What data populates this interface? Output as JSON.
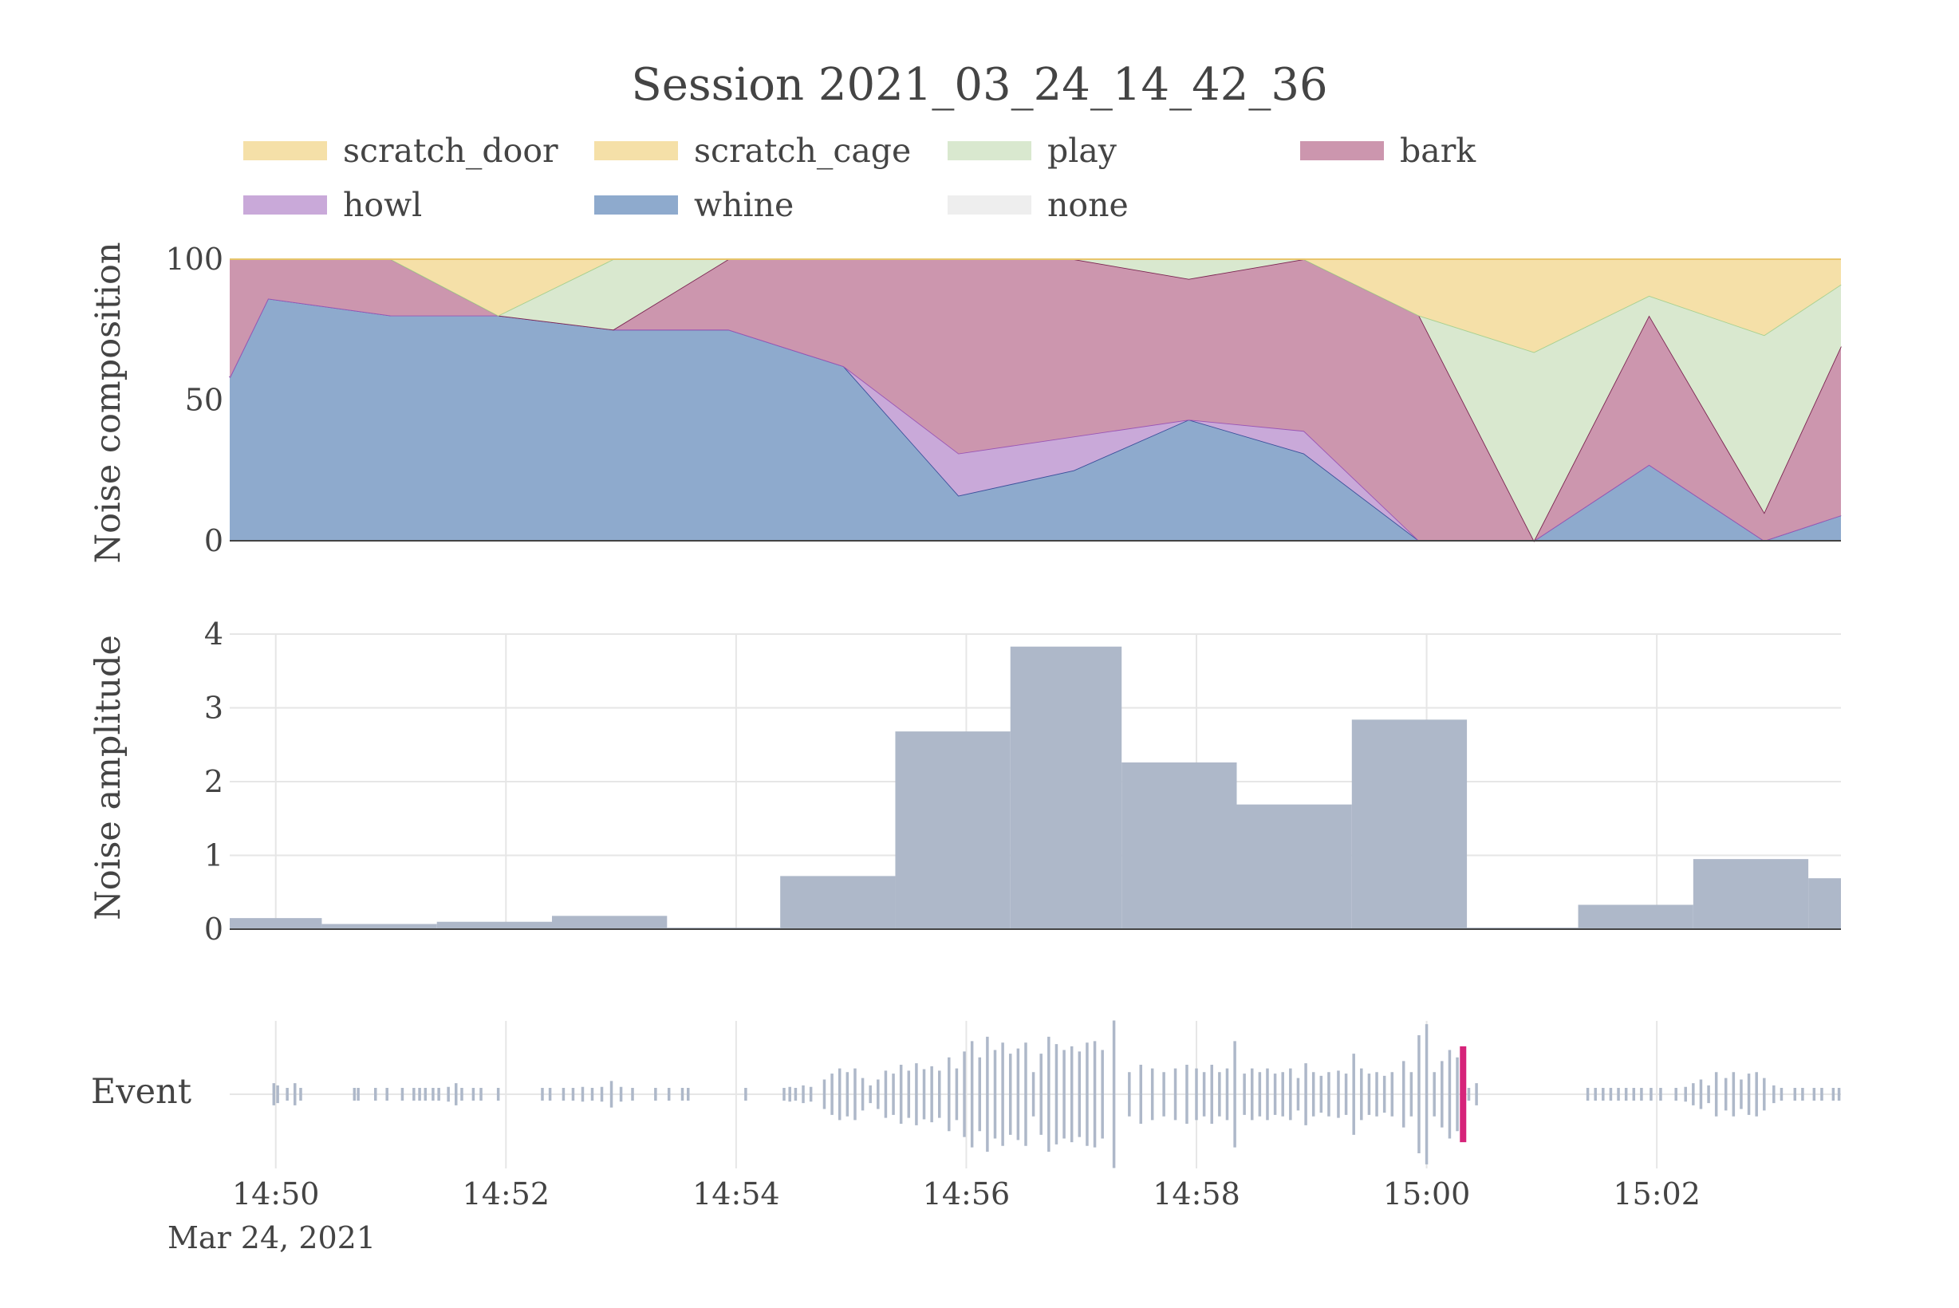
{
  "title": "Session 2021_03_24_14_42_36",
  "legend": [
    {
      "name": "scratch_door",
      "color": "#f5e0a8"
    },
    {
      "name": "scratch_cage",
      "color": "#f5e0a8"
    },
    {
      "name": "play",
      "color": "#d9e8cf"
    },
    {
      "name": "bark",
      "color": "#cc96ae"
    },
    {
      "name": "howl",
      "color": "#c9a9d9"
    },
    {
      "name": "whine",
      "color": "#8eaacd"
    },
    {
      "name": "none",
      "color": "#eeeeee"
    }
  ],
  "colors": {
    "whine_line": "#3a4f9a",
    "howl_line": "#9a55b5",
    "bark_line": "#7a2450",
    "play_line": "#a8d08f",
    "scratch_line": "#e9c46a",
    "amplitude_fill": "#aeb8c9",
    "event_bar": "#aeb8c9",
    "event_highlight": "#d6247a"
  },
  "x_axis": {
    "tick_labels": [
      "14:50",
      "14:52",
      "14:54",
      "14:56",
      "14:58",
      "15:00",
      "15:02"
    ],
    "date_label": "Mar 24, 2021",
    "range": [
      "14:49:36",
      "15:03:36"
    ]
  },
  "chart_data": [
    {
      "type": "area",
      "ylabel": "Noise composition",
      "ylim": [
        0,
        100
      ],
      "y_ticks": [
        "0",
        "50",
        "100"
      ],
      "x": [
        "14:49:36",
        "14:49:56",
        "14:51:00",
        "14:51:56",
        "14:52:56",
        "14:53:56",
        "14:54:56",
        "14:55:56",
        "14:56:56",
        "14:57:56",
        "14:58:56",
        "14:59:56",
        "15:00:56",
        "15:01:56",
        "15:02:56",
        "15:03:36"
      ],
      "stacked_order": [
        "whine",
        "howl",
        "bark",
        "play",
        "scratch_cage",
        "scratch_door"
      ],
      "series": [
        {
          "name": "whine",
          "values": [
            58,
            86,
            80,
            80,
            75,
            75,
            62,
            16,
            25,
            43,
            31,
            0,
            0,
            27,
            0,
            9
          ]
        },
        {
          "name": "howl",
          "values": [
            0,
            0,
            0,
            0,
            0,
            0,
            0,
            15,
            12,
            0,
            8,
            0,
            0,
            0,
            0,
            0
          ]
        },
        {
          "name": "bark",
          "values": [
            42,
            14,
            20,
            0,
            0,
            25,
            38,
            69,
            63,
            50,
            61,
            80,
            0,
            53,
            10,
            60
          ]
        },
        {
          "name": "play",
          "values": [
            0,
            0,
            0,
            0,
            25,
            0,
            0,
            0,
            0,
            7,
            0,
            0,
            67,
            7,
            63,
            22
          ]
        },
        {
          "name": "scratch_cage",
          "values": [
            0,
            0,
            0,
            20,
            0,
            0,
            0,
            0,
            0,
            0,
            0,
            20,
            33,
            13,
            27,
            9
          ]
        },
        {
          "name": "scratch_door",
          "values": [
            0,
            0,
            0,
            0,
            0,
            0,
            0,
            0,
            0,
            0,
            0,
            0,
            0,
            0,
            0,
            0
          ]
        }
      ]
    },
    {
      "type": "bar",
      "ylabel": "Noise amplitude",
      "ylim": [
        0,
        4
      ],
      "y_ticks": [
        "0",
        "1",
        "2",
        "3",
        "4"
      ],
      "bins": [
        {
          "start": "14:49:36",
          "end": "14:50:24",
          "value": 0.15
        },
        {
          "start": "14:50:24",
          "end": "14:51:24",
          "value": 0.07
        },
        {
          "start": "14:51:24",
          "end": "14:52:24",
          "value": 0.1
        },
        {
          "start": "14:52:24",
          "end": "14:53:24",
          "value": 0.18
        },
        {
          "start": "14:53:24",
          "end": "14:54:23",
          "value": 0.02
        },
        {
          "start": "14:54:23",
          "end": "14:55:23",
          "value": 0.72
        },
        {
          "start": "14:55:23",
          "end": "14:56:23",
          "value": 2.68
        },
        {
          "start": "14:56:23",
          "end": "14:57:21",
          "value": 3.83
        },
        {
          "start": "14:57:21",
          "end": "14:58:21",
          "value": 2.26
        },
        {
          "start": "14:58:21",
          "end": "14:59:21",
          "value": 1.69
        },
        {
          "start": "14:59:21",
          "end": "15:00:21",
          "value": 2.84
        },
        {
          "start": "15:00:21",
          "end": "15:01:19",
          "value": 0.02
        },
        {
          "start": "15:01:19",
          "end": "15:02:19",
          "value": 0.33
        },
        {
          "start": "15:02:19",
          "end": "15:03:19",
          "value": 0.95
        },
        {
          "start": "15:03:19",
          "end": "15:03:36",
          "value": 0.69
        }
      ]
    },
    {
      "type": "scatter",
      "ylabel": "Event",
      "note_shape": "vertical event ticks; amplitude shown as tick height",
      "events": [
        {
          "t": "14:49:59",
          "a": 0.15
        },
        {
          "t": "14:50:01",
          "a": 0.12
        },
        {
          "t": "14:50:06",
          "a": 0.08
        },
        {
          "t": "14:50:10",
          "a": 0.15
        },
        {
          "t": "14:50:13",
          "a": 0.06
        },
        {
          "t": "14:50:41",
          "a": 0.08
        },
        {
          "t": "14:50:43",
          "a": 0.06
        },
        {
          "t": "14:50:52",
          "a": 0.08
        },
        {
          "t": "14:50:58",
          "a": 0.07
        },
        {
          "t": "14:51:06",
          "a": 0.08
        },
        {
          "t": "14:51:12",
          "a": 0.08
        },
        {
          "t": "14:51:15",
          "a": 0.07
        },
        {
          "t": "14:51:18",
          "a": 0.08
        },
        {
          "t": "14:51:22",
          "a": 0.07
        },
        {
          "t": "14:51:25",
          "a": 0.08
        },
        {
          "t": "14:51:30",
          "a": 0.1
        },
        {
          "t": "14:51:34",
          "a": 0.15
        },
        {
          "t": "14:51:37",
          "a": 0.08
        },
        {
          "t": "14:51:43",
          "a": 0.08
        },
        {
          "t": "14:51:47",
          "a": 0.07
        },
        {
          "t": "14:51:56",
          "a": 0.07
        },
        {
          "t": "14:52:19",
          "a": 0.08
        },
        {
          "t": "14:52:23",
          "a": 0.06
        },
        {
          "t": "14:52:30",
          "a": 0.08
        },
        {
          "t": "14:52:35",
          "a": 0.07
        },
        {
          "t": "14:52:40",
          "a": 0.1
        },
        {
          "t": "14:52:45",
          "a": 0.08
        },
        {
          "t": "14:52:50",
          "a": 0.1
        },
        {
          "t": "14:52:55",
          "a": 0.18
        },
        {
          "t": "14:53:00",
          "a": 0.1
        },
        {
          "t": "14:53:06",
          "a": 0.07
        },
        {
          "t": "14:53:18",
          "a": 0.08
        },
        {
          "t": "14:53:25",
          "a": 0.06
        },
        {
          "t": "14:53:32",
          "a": 0.08
        },
        {
          "t": "14:53:35",
          "a": 0.07
        },
        {
          "t": "14:54:05",
          "a": 0.06
        },
        {
          "t": "14:54:25",
          "a": 0.07
        },
        {
          "t": "14:54:28",
          "a": 0.1
        },
        {
          "t": "14:54:31",
          "a": 0.07
        },
        {
          "t": "14:54:35",
          "a": 0.12
        },
        {
          "t": "14:54:39",
          "a": 0.1
        },
        {
          "t": "14:54:46",
          "a": 0.2
        },
        {
          "t": "14:54:50",
          "a": 0.28
        },
        {
          "t": "14:54:54",
          "a": 0.35
        },
        {
          "t": "14:54:58",
          "a": 0.3
        },
        {
          "t": "14:55:02",
          "a": 0.35
        },
        {
          "t": "14:55:06",
          "a": 0.22
        },
        {
          "t": "14:55:10",
          "a": 0.12
        },
        {
          "t": "14:55:14",
          "a": 0.2
        },
        {
          "t": "14:55:18",
          "a": 0.32
        },
        {
          "t": "14:55:22",
          "a": 0.28
        },
        {
          "t": "14:55:26",
          "a": 0.4
        },
        {
          "t": "14:55:30",
          "a": 0.32
        },
        {
          "t": "14:55:34",
          "a": 0.42
        },
        {
          "t": "14:55:38",
          "a": 0.34
        },
        {
          "t": "14:55:42",
          "a": 0.38
        },
        {
          "t": "14:55:46",
          "a": 0.32
        },
        {
          "t": "14:55:51",
          "a": 0.5
        },
        {
          "t": "14:55:55",
          "a": 0.35
        },
        {
          "t": "14:55:59",
          "a": 0.58
        },
        {
          "t": "14:56:03",
          "a": 0.72
        },
        {
          "t": "14:56:07",
          "a": 0.5
        },
        {
          "t": "14:56:11",
          "a": 0.78
        },
        {
          "t": "14:56:15",
          "a": 0.6
        },
        {
          "t": "14:56:19",
          "a": 0.7
        },
        {
          "t": "14:56:23",
          "a": 0.55
        },
        {
          "t": "14:56:27",
          "a": 0.62
        },
        {
          "t": "14:56:31",
          "a": 0.7
        },
        {
          "t": "14:56:35",
          "a": 0.3
        },
        {
          "t": "14:56:39",
          "a": 0.55
        },
        {
          "t": "14:56:43",
          "a": 0.78
        },
        {
          "t": "14:56:47",
          "a": 0.68
        },
        {
          "t": "14:56:51",
          "a": 0.6
        },
        {
          "t": "14:56:55",
          "a": 0.65
        },
        {
          "t": "14:56:59",
          "a": 0.58
        },
        {
          "t": "14:57:03",
          "a": 0.7
        },
        {
          "t": "14:57:07",
          "a": 0.72
        },
        {
          "t": "14:57:11",
          "a": 0.6
        },
        {
          "t": "14:57:17",
          "a": 1.0
        },
        {
          "t": "14:57:25",
          "a": 0.3
        },
        {
          "t": "14:57:31",
          "a": 0.4
        },
        {
          "t": "14:57:37",
          "a": 0.35
        },
        {
          "t": "14:57:43",
          "a": 0.3
        },
        {
          "t": "14:57:49",
          "a": 0.35
        },
        {
          "t": "14:57:55",
          "a": 0.4
        },
        {
          "t": "14:58:00",
          "a": 0.35
        },
        {
          "t": "14:58:04",
          "a": 0.3
        },
        {
          "t": "14:58:08",
          "a": 0.4
        },
        {
          "t": "14:58:12",
          "a": 0.3
        },
        {
          "t": "14:58:16",
          "a": 0.35
        },
        {
          "t": "14:58:20",
          "a": 0.72
        },
        {
          "t": "14:58:25",
          "a": 0.28
        },
        {
          "t": "14:58:29",
          "a": 0.35
        },
        {
          "t": "14:58:33",
          "a": 0.3
        },
        {
          "t": "14:58:37",
          "a": 0.35
        },
        {
          "t": "14:58:41",
          "a": 0.28
        },
        {
          "t": "14:58:45",
          "a": 0.3
        },
        {
          "t": "14:58:49",
          "a": 0.35
        },
        {
          "t": "14:58:53",
          "a": 0.22
        },
        {
          "t": "14:58:57",
          "a": 0.42
        },
        {
          "t": "14:59:01",
          "a": 0.3
        },
        {
          "t": "14:59:05",
          "a": 0.25
        },
        {
          "t": "14:59:09",
          "a": 0.3
        },
        {
          "t": "14:59:14",
          "a": 0.32
        },
        {
          "t": "14:59:18",
          "a": 0.28
        },
        {
          "t": "14:59:22",
          "a": 0.55
        },
        {
          "t": "14:59:26",
          "a": 0.35
        },
        {
          "t": "14:59:30",
          "a": 0.28
        },
        {
          "t": "14:59:34",
          "a": 0.3
        },
        {
          "t": "14:59:38",
          "a": 0.25
        },
        {
          "t": "14:59:42",
          "a": 0.3
        },
        {
          "t": "14:59:48",
          "a": 0.45
        },
        {
          "t": "14:59:52",
          "a": 0.3
        },
        {
          "t": "14:59:56",
          "a": 0.8
        },
        {
          "t": "15:00:00",
          "a": 0.95
        },
        {
          "t": "15:00:04",
          "a": 0.3
        },
        {
          "t": "15:00:08",
          "a": 0.45
        },
        {
          "t": "15:00:12",
          "a": 0.6
        },
        {
          "t": "15:00:16",
          "a": 0.5
        },
        {
          "t": "15:00:22",
          "a": 0.05
        },
        {
          "t": "15:00:26",
          "a": 0.15
        },
        {
          "t": "15:01:24",
          "a": 0.07
        },
        {
          "t": "15:01:28",
          "a": 0.06
        },
        {
          "t": "15:01:32",
          "a": 0.07
        },
        {
          "t": "15:01:36",
          "a": 0.06
        },
        {
          "t": "15:01:40",
          "a": 0.07
        },
        {
          "t": "15:01:44",
          "a": 0.06
        },
        {
          "t": "15:01:48",
          "a": 0.07
        },
        {
          "t": "15:01:52",
          "a": 0.06
        },
        {
          "t": "15:01:57",
          "a": 0.07
        },
        {
          "t": "15:02:02",
          "a": 0.06
        },
        {
          "t": "15:02:10",
          "a": 0.08
        },
        {
          "t": "15:02:15",
          "a": 0.1
        },
        {
          "t": "15:02:19",
          "a": 0.15
        },
        {
          "t": "15:02:23",
          "a": 0.2
        },
        {
          "t": "15:02:27",
          "a": 0.12
        },
        {
          "t": "15:02:31",
          "a": 0.3
        },
        {
          "t": "15:02:36",
          "a": 0.22
        },
        {
          "t": "15:02:40",
          "a": 0.3
        },
        {
          "t": "15:02:44",
          "a": 0.2
        },
        {
          "t": "15:02:48",
          "a": 0.28
        },
        {
          "t": "15:02:52",
          "a": 0.3
        },
        {
          "t": "15:02:56",
          "a": 0.22
        },
        {
          "t": "15:03:01",
          "a": 0.12
        },
        {
          "t": "15:03:05",
          "a": 0.08
        },
        {
          "t": "15:03:12",
          "a": 0.06
        },
        {
          "t": "15:03:16",
          "a": 0.07
        },
        {
          "t": "15:03:22",
          "a": 0.06
        },
        {
          "t": "15:03:26",
          "a": 0.07
        },
        {
          "t": "15:03:32",
          "a": 0.06
        },
        {
          "t": "15:03:35",
          "a": 0.07
        }
      ],
      "highlight_event": {
        "t": "15:00:19",
        "a": 0.65
      }
    }
  ]
}
